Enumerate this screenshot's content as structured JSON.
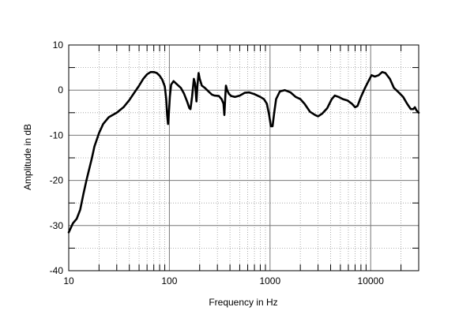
{
  "chart_data": {
    "type": "line",
    "title": "",
    "xlabel": "Frequency in Hz",
    "ylabel": "Amplitude in dB",
    "x_scale": "log",
    "xlim": [
      10,
      30000
    ],
    "ylim": [
      -40,
      10
    ],
    "x_ticks": [
      10,
      100,
      1000,
      10000
    ],
    "x_tick_labels": [
      "10",
      "100",
      "1000",
      "10000"
    ],
    "y_ticks": [
      10,
      0,
      -10,
      -20,
      -30,
      -40
    ],
    "y_tick_labels": [
      "10",
      "0",
      "-10",
      "-20",
      "-30",
      "-40"
    ],
    "grid": true,
    "line_color": "#000000",
    "series": [
      {
        "name": "",
        "points": [
          [
            10,
            -31.5
          ],
          [
            11,
            -29.5
          ],
          [
            12,
            -28.5
          ],
          [
            13,
            -26.5
          ],
          [
            14,
            -23
          ],
          [
            15,
            -20
          ],
          [
            17,
            -15
          ],
          [
            18,
            -12.5
          ],
          [
            20,
            -9.5
          ],
          [
            22,
            -7.5
          ],
          [
            25,
            -6
          ],
          [
            30,
            -5
          ],
          [
            35,
            -3.8
          ],
          [
            40,
            -2.2
          ],
          [
            45,
            -0.5
          ],
          [
            50,
            1
          ],
          [
            55,
            2.5
          ],
          [
            60,
            3.5
          ],
          [
            65,
            4
          ],
          [
            70,
            4
          ],
          [
            75,
            3.8
          ],
          [
            80,
            3.2
          ],
          [
            85,
            2.3
          ],
          [
            90,
            0.8
          ],
          [
            93,
            -2
          ],
          [
            95,
            -5.5
          ],
          [
            97,
            -7.5
          ],
          [
            99,
            -5
          ],
          [
            101,
            -1.5
          ],
          [
            104,
            1.2
          ],
          [
            110,
            2
          ],
          [
            120,
            1.2
          ],
          [
            130,
            0.5
          ],
          [
            140,
            -0.8
          ],
          [
            150,
            -2.5
          ],
          [
            158,
            -4
          ],
          [
            162,
            -4.2
          ],
          [
            168,
            -1.5
          ],
          [
            175,
            2.5
          ],
          [
            180,
            1.5
          ],
          [
            186,
            -2.5
          ],
          [
            190,
            1
          ],
          [
            195,
            3.8
          ],
          [
            200,
            2.5
          ],
          [
            210,
            1
          ],
          [
            225,
            0.5
          ],
          [
            245,
            -0.3
          ],
          [
            265,
            -1
          ],
          [
            280,
            -1.2
          ],
          [
            310,
            -1.3
          ],
          [
            330,
            -2
          ],
          [
            345,
            -3
          ],
          [
            352,
            -5.5
          ],
          [
            358,
            -2
          ],
          [
            365,
            1
          ],
          [
            375,
            0
          ],
          [
            390,
            -0.8
          ],
          [
            410,
            -1.3
          ],
          [
            450,
            -1.5
          ],
          [
            500,
            -1.2
          ],
          [
            560,
            -0.6
          ],
          [
            620,
            -0.5
          ],
          [
            700,
            -0.9
          ],
          [
            800,
            -1.5
          ],
          [
            870,
            -2
          ],
          [
            930,
            -3
          ],
          [
            980,
            -5.5
          ],
          [
            1020,
            -8
          ],
          [
            1060,
            -8
          ],
          [
            1100,
            -5
          ],
          [
            1150,
            -2
          ],
          [
            1250,
            -0.3
          ],
          [
            1400,
            0
          ],
          [
            1600,
            -0.5
          ],
          [
            1800,
            -1.5
          ],
          [
            2000,
            -2
          ],
          [
            2200,
            -3
          ],
          [
            2500,
            -4.8
          ],
          [
            2800,
            -5.5
          ],
          [
            3000,
            -5.8
          ],
          [
            3300,
            -5.2
          ],
          [
            3700,
            -4
          ],
          [
            4100,
            -2
          ],
          [
            4400,
            -1.2
          ],
          [
            4800,
            -1.5
          ],
          [
            5300,
            -2
          ],
          [
            5900,
            -2.3
          ],
          [
            6500,
            -3
          ],
          [
            7000,
            -3.8
          ],
          [
            7400,
            -3.5
          ],
          [
            8000,
            -1.5
          ],
          [
            8800,
            0.5
          ],
          [
            9500,
            2
          ],
          [
            10200,
            3.3
          ],
          [
            11000,
            3
          ],
          [
            12000,
            3.3
          ],
          [
            13000,
            4
          ],
          [
            14000,
            3.8
          ],
          [
            15500,
            2.5
          ],
          [
            17000,
            0.5
          ],
          [
            19000,
            -0.5
          ],
          [
            21000,
            -1.5
          ],
          [
            23000,
            -3
          ],
          [
            25000,
            -4.2
          ],
          [
            26500,
            -4.2
          ],
          [
            27500,
            -3.8
          ],
          [
            28500,
            -4.5
          ],
          [
            30000,
            -5
          ]
        ]
      }
    ]
  }
}
